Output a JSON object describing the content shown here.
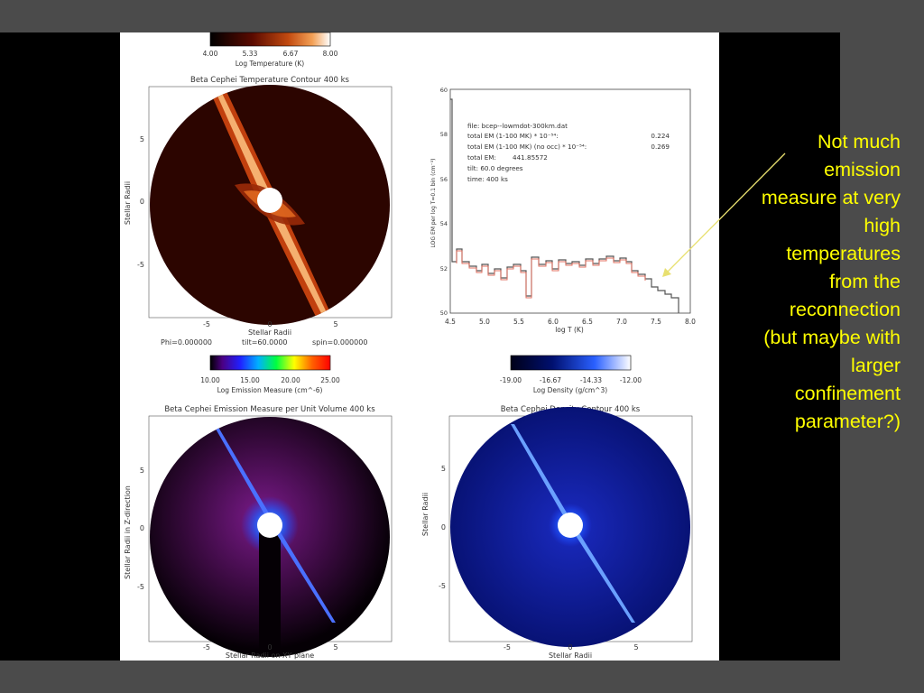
{
  "slide": {
    "callout_text": "Not much emission measure at very high temperatures from the reconnection (but maybe with larger confinement parameter?)",
    "colors": {
      "background": "#4b4b4b",
      "callout": "#ffff00",
      "figure_bg": "#ffffff",
      "side_panels": "#000000"
    }
  },
  "figure": {
    "temperature": {
      "colorbar_ticks": [
        "4.00",
        "5.33",
        "6.67",
        "8.00"
      ],
      "colorbar_label": "Log Temperature (K)",
      "title": "Beta Cephei Temperature Contour 400 ks",
      "ylabel": "Stellar Radii",
      "xlabel": "Stellar Radii",
      "x_ticks": [
        "-5",
        "0",
        "5"
      ],
      "y_ticks": [
        "5",
        "0",
        "-5"
      ],
      "params": [
        "Phi=0.000000",
        "tilt=60.0000",
        "spin=0.000000"
      ]
    },
    "em_hist": {
      "info_lines": [
        [
          "file: bcep--lowmdot-300km.dat",
          ""
        ],
        [
          "total EM (1-100 MK) * 10⁻⁵⁴:",
          "0.224"
        ],
        [
          "total EM (1-100 MK) (no occ) * 10⁻⁵⁴:",
          "0.269"
        ],
        [
          "total EM:",
          "441.85572"
        ],
        [
          "tilt:  60.0 degrees",
          ""
        ],
        [
          "time:       400 ks",
          ""
        ]
      ],
      "ylabel": "LOG EM per log T=0.1 bin (cm⁻³)",
      "xlabel": "log T (K)",
      "x_ticks": [
        "4.5",
        "5.0",
        "5.5",
        "6.0",
        "6.5",
        "7.0",
        "7.5",
        "8.0"
      ],
      "y_ticks": [
        "60",
        "58",
        "56",
        "54",
        "52",
        "50"
      ]
    },
    "emission": {
      "colorbar_ticks": [
        "10.00",
        "15.00",
        "20.00",
        "25.00"
      ],
      "colorbar_label": "Log Emission Measure (cm^-6)",
      "title": "Beta Cephei Emission Measure per Unit Volume 400 ks",
      "ylabel": "Stellar Radii in Z-direction",
      "xlabel": "Stellar Radii on XY plane",
      "x_ticks": [
        "-5",
        "0",
        "5"
      ],
      "y_ticks": [
        "5",
        "0",
        "-5"
      ]
    },
    "density": {
      "colorbar_ticks": [
        "-19.00",
        "-16.67",
        "-14.33",
        "-12.00"
      ],
      "colorbar_label": "Log Density (g/cm^3)",
      "title": "Beta Cephei Density Contour 400 ks",
      "ylabel": "Stellar Radii",
      "xlabel": "Stellar Radii",
      "x_ticks": [
        "-5",
        "0",
        "5"
      ],
      "y_ticks": [
        "5",
        "0",
        "-5"
      ]
    }
  }
}
